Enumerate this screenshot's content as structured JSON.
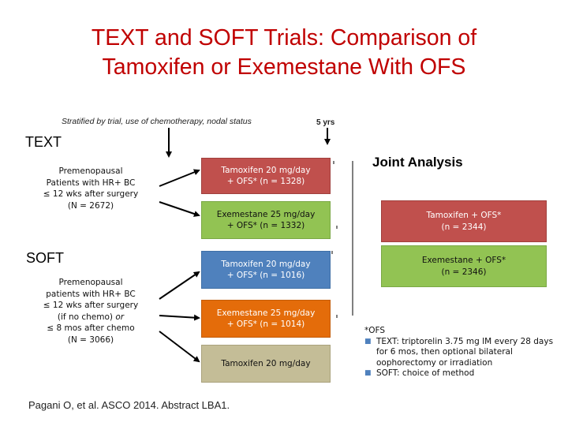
{
  "title_line1": "TEXT and SOFT Trials: Comparison of",
  "title_line2": "Tamoxifen or Exemestane With OFS",
  "stratified_note": "Stratified by trial, use of chemotherapy, nodal status",
  "time_label": "5 yrs",
  "text_trial": {
    "heading": "TEXT",
    "population": "Premenopausal\nPatients with HR+ BC\n≤ 12 wks after surgery\n(N = 2672)"
  },
  "soft_trial": {
    "heading": "SOFT",
    "population_a": "Premenopausal\npatients with HR+ BC\n≤ 12 wks after surgery\n(if no chemo) ",
    "population_or": "or",
    "population_b": "\n≤ 8 mos after chemo\n(N = 3066)"
  },
  "arms": [
    {
      "label": "Tamoxifen 20 mg/day\n+ OFS* (n = 1328)",
      "color": "#c0504d"
    },
    {
      "label": "Exemestane 25 mg/day\n+ OFS* (n = 1332)",
      "color": "#92c353"
    },
    {
      "label": "Tamoxifen 20 mg/day\n+ OFS* (n = 1016)",
      "color": "#4f81bd"
    },
    {
      "label": "Exemestane 25 mg/day\n+ OFS* (n = 1014)",
      "color": "#e46c0a"
    },
    {
      "label": "Tamoxifen 20 mg/day",
      "color": "#c4bd97"
    }
  ],
  "joint_analysis": {
    "heading": "Joint Analysis",
    "arms": [
      {
        "label": "Tamoxifen + OFS*\n(n = 2344)",
        "color": "#c0504d"
      },
      {
        "label": "Exemestane + OFS*\n(n = 2346)",
        "color": "#92c353"
      }
    ]
  },
  "footnote": {
    "heading": "*OFS",
    "items": [
      "TEXT: triptorelin 3.75 mg IM every 28 days for 6 mos, then optional bilateral oophorectomy or irradiation",
      "SOFT: choice of method"
    ]
  },
  "citation": "Pagani O, et al. ASCO 2014. Abstract LBA1."
}
